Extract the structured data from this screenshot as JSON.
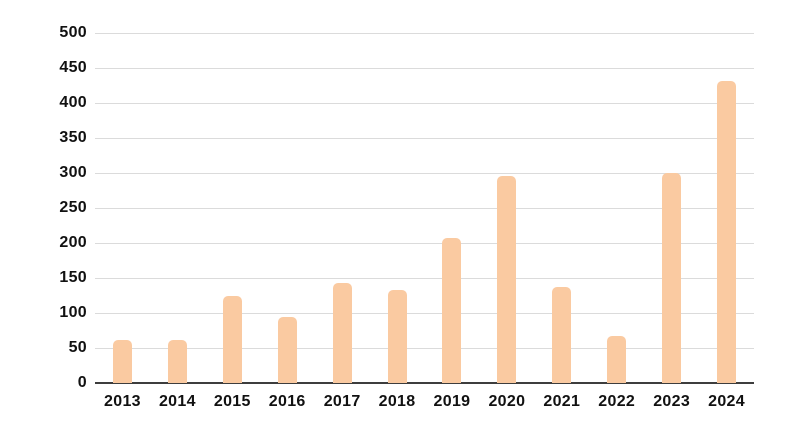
{
  "chart_data": {
    "type": "bar",
    "title": "",
    "xlabel": "",
    "ylabel": "",
    "categories": [
      "2013",
      "2014",
      "2015",
      "2016",
      "2017",
      "2018",
      "2019",
      "2020",
      "2021",
      "2022",
      "2023",
      "2024"
    ],
    "values": [
      62,
      62,
      125,
      95,
      143,
      133,
      207,
      296,
      137,
      67,
      300,
      431
    ],
    "ylim": [
      0,
      500
    ],
    "yticks": [
      0,
      50,
      100,
      150,
      200,
      250,
      300,
      350,
      400,
      450,
      500
    ],
    "grid": true,
    "legend": false,
    "colors": {
      "bar": "#FACAA1",
      "gridline": "#DBDBDB",
      "axis": "#3D3D3D",
      "text": "#111111",
      "background": "#FFFFFF"
    }
  }
}
